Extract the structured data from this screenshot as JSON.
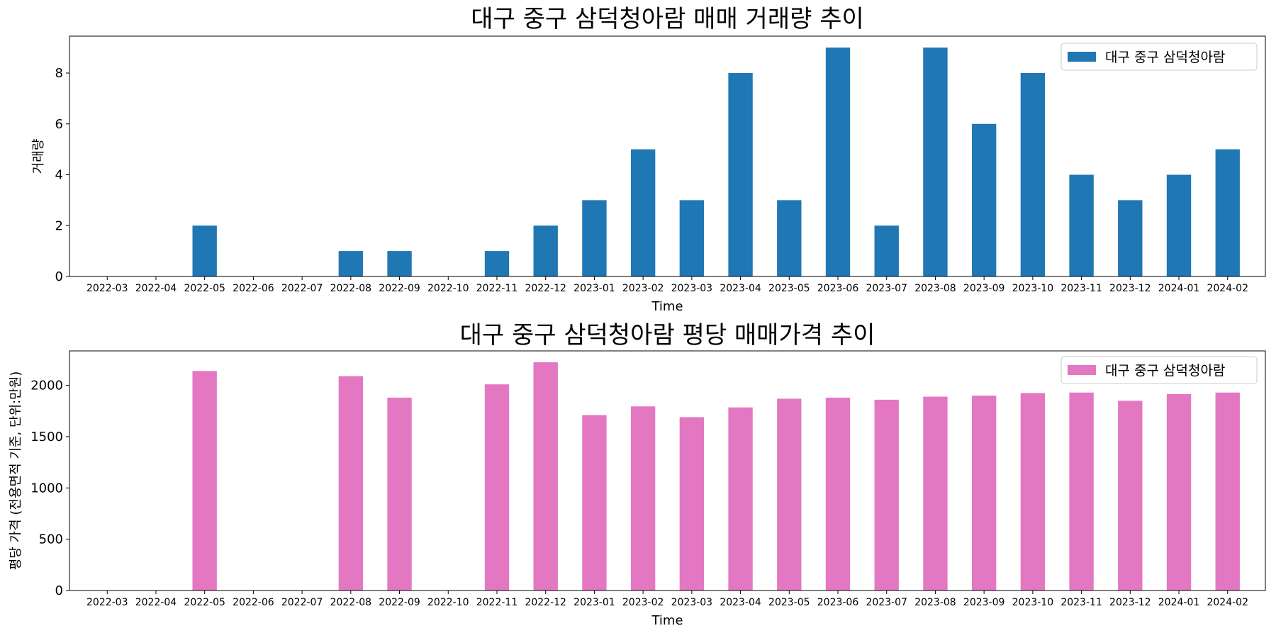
{
  "chart_data": [
    {
      "type": "bar",
      "title": "대구 중구 삼덕청아람 매매 거래량 추이",
      "xlabel": "Time",
      "ylabel": "거래량",
      "categories": [
        "2022-03",
        "2022-04",
        "2022-05",
        "2022-06",
        "2022-07",
        "2022-08",
        "2022-09",
        "2022-10",
        "2022-11",
        "2022-12",
        "2023-01",
        "2023-02",
        "2023-03",
        "2023-04",
        "2023-05",
        "2023-06",
        "2023-07",
        "2023-08",
        "2023-09",
        "2023-10",
        "2023-11",
        "2023-12",
        "2024-01",
        "2024-02"
      ],
      "series": [
        {
          "name": "대구 중구 삼덕청아람",
          "color": "#1f77b4",
          "values": [
            0,
            0,
            2,
            0,
            0,
            1,
            1,
            0,
            1,
            2,
            3,
            5,
            3,
            8,
            3,
            9,
            2,
            9,
            6,
            8,
            4,
            3,
            4,
            5
          ]
        }
      ],
      "yticks": [
        0,
        2,
        4,
        6,
        8
      ],
      "ylim": [
        0,
        9.45
      ],
      "grid": false,
      "legend": "top-right"
    },
    {
      "type": "bar",
      "title": "대구 중구 삼덕청아람 평당 매매가격 추이",
      "xlabel": "Time",
      "ylabel": "평당 가격 (전용면적 기준, 단위:만원)",
      "categories": [
        "2022-03",
        "2022-04",
        "2022-05",
        "2022-06",
        "2022-07",
        "2022-08",
        "2022-09",
        "2022-10",
        "2022-11",
        "2022-12",
        "2023-01",
        "2023-02",
        "2023-03",
        "2023-04",
        "2023-05",
        "2023-06",
        "2023-07",
        "2023-08",
        "2023-09",
        "2023-10",
        "2023-11",
        "2023-12",
        "2024-01",
        "2024-02"
      ],
      "series": [
        {
          "name": "대구 중구 삼덕청아람",
          "color": "#e377c2",
          "values": [
            0,
            0,
            2140,
            0,
            0,
            2090,
            1880,
            0,
            2010,
            2225,
            1710,
            1795,
            1690,
            1785,
            1870,
            1880,
            1860,
            1890,
            1900,
            1925,
            1930,
            1850,
            1915,
            1930
          ]
        }
      ],
      "yticks": [
        0,
        500,
        1000,
        1500,
        2000
      ],
      "ylim": [
        0,
        2336
      ],
      "grid": false,
      "legend": "top-right"
    }
  ]
}
